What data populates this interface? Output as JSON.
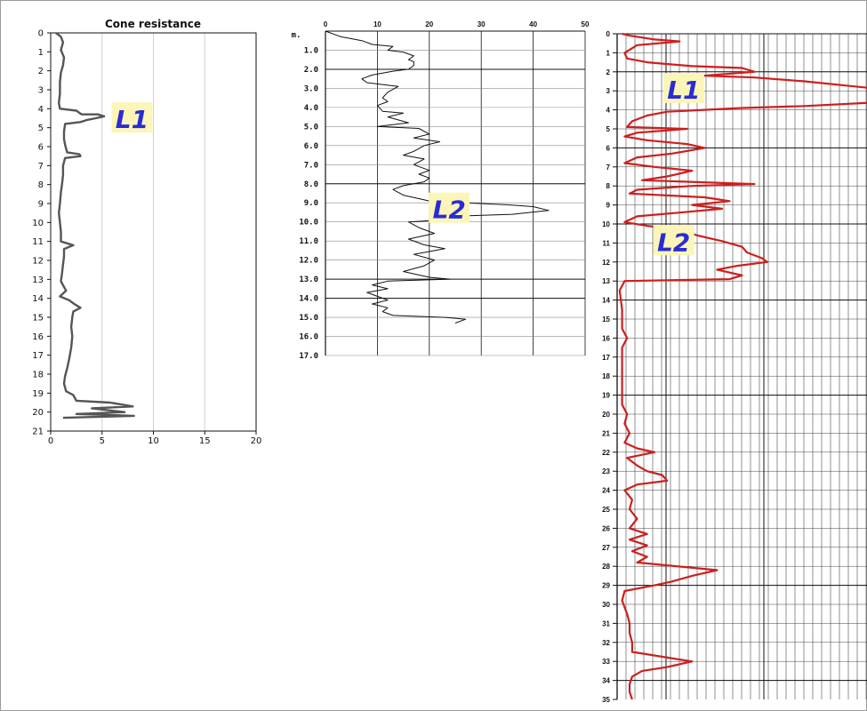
{
  "colors": {
    "panel1_line": "#555555",
    "panel2_line": "#111111",
    "panel3_line": "#cc1f1f",
    "label_text": "#2b2bd6",
    "label_bg": "#fbf6b8"
  },
  "chart_data": [
    {
      "type": "line",
      "title": "Cone resistance",
      "orientation": "depth profile (x = value, y = depth downwards)",
      "xlim": [
        0,
        20
      ],
      "ylim": [
        0,
        21
      ],
      "x_ticks": [
        "0",
        "5",
        "10",
        "15",
        "20"
      ],
      "y_ticks": [
        "0",
        "1",
        "2",
        "3",
        "4",
        "5",
        "6",
        "7",
        "8",
        "9",
        "10",
        "11",
        "12",
        "13",
        "14",
        "15",
        "16",
        "17",
        "18",
        "19",
        "20",
        "21"
      ],
      "annotations": [
        {
          "text": "L1",
          "x": 8,
          "y": 4.6
        }
      ],
      "series": [
        {
          "points": [
            [
              0.5,
              0
            ],
            [
              1,
              0.2
            ],
            [
              1.2,
              0.5
            ],
            [
              1,
              0.9
            ],
            [
              1.3,
              1.3
            ],
            [
              1.2,
              1.7
            ],
            [
              1,
              2.1
            ],
            [
              0.9,
              2.6
            ],
            [
              0.9,
              3.2
            ],
            [
              0.8,
              3.7
            ],
            [
              0.9,
              4
            ],
            [
              2.5,
              4.1
            ],
            [
              3,
              4.3
            ],
            [
              4.6,
              4.3
            ],
            [
              5.2,
              4.4
            ],
            [
              4.4,
              4.5
            ],
            [
              3.5,
              4.6
            ],
            [
              2.9,
              4.7
            ],
            [
              1.4,
              4.8
            ],
            [
              1.3,
              5.2
            ],
            [
              1.3,
              5.6
            ],
            [
              1.4,
              5.9
            ],
            [
              1.5,
              6.1
            ],
            [
              1.6,
              6.3
            ],
            [
              2.8,
              6.4
            ],
            [
              2.9,
              6.5
            ],
            [
              1.4,
              6.6
            ],
            [
              1.2,
              7
            ],
            [
              1.2,
              7.5
            ],
            [
              1.1,
              8
            ],
            [
              1,
              8.4
            ],
            [
              0.9,
              9
            ],
            [
              0.8,
              9.5
            ],
            [
              0.9,
              10
            ],
            [
              1,
              10.5
            ],
            [
              1,
              11
            ],
            [
              2.2,
              11.2
            ],
            [
              1.3,
              11.4
            ],
            [
              1.3,
              11.8
            ],
            [
              1.2,
              12.2
            ],
            [
              1.1,
              12.7
            ],
            [
              1,
              13.1
            ],
            [
              1.5,
              13.6
            ],
            [
              0.9,
              13.9
            ],
            [
              1.8,
              14.1
            ],
            [
              2.3,
              14.3
            ],
            [
              2.9,
              14.5
            ],
            [
              2.2,
              14.7
            ],
            [
              2.1,
              15
            ],
            [
              2,
              15.5
            ],
            [
              2.1,
              16
            ],
            [
              2,
              16.6
            ],
            [
              1.8,
              17.2
            ],
            [
              1.6,
              17.7
            ],
            [
              1.4,
              18.1
            ],
            [
              1.3,
              18.5
            ],
            [
              1.5,
              18.9
            ],
            [
              2.2,
              19.1
            ],
            [
              2.5,
              19.4
            ],
            [
              5.8,
              19.5
            ],
            [
              8,
              19.7
            ],
            [
              4,
              19.8
            ],
            [
              7.2,
              20
            ],
            [
              2.5,
              20.1
            ],
            [
              8.1,
              20.2
            ],
            [
              1.2,
              20.3
            ]
          ]
        }
      ]
    },
    {
      "type": "line",
      "orientation": "depth profile (x = value, y = depth downwards)",
      "xlim": [
        0,
        50
      ],
      "ylim": [
        0,
        17
      ],
      "x_ticks": [
        "0",
        "10",
        "20",
        "30",
        "40",
        "50"
      ],
      "y_ticks": [
        "0.0",
        "1.0",
        "2.0",
        "3.0",
        "4.0",
        "5.0",
        "6.0",
        "7.0",
        "8.0",
        "9.0",
        "10.0",
        "11.0",
        "12.0",
        "13.0",
        "14.0",
        "15.0",
        "16.0",
        "17.0"
      ],
      "y_unit_label": "m.",
      "annotations": [
        {
          "text": "L2",
          "x": 24,
          "y": 9.3
        }
      ],
      "series": [
        {
          "points": [
            [
              0,
              0
            ],
            [
              3,
              0.3
            ],
            [
              7,
              0.5
            ],
            [
              9,
              0.7
            ],
            [
              13,
              0.8
            ],
            [
              12,
              1
            ],
            [
              15,
              1.1
            ],
            [
              17,
              1.3
            ],
            [
              16,
              1.5
            ],
            [
              17,
              1.6
            ],
            [
              17,
              1.8
            ],
            [
              16,
              2
            ],
            [
              13,
              2.1
            ],
            [
              11,
              2.2
            ],
            [
              9,
              2.3
            ],
            [
              7,
              2.5
            ],
            [
              8,
              2.7
            ],
            [
              11,
              2.8
            ],
            [
              14,
              2.9
            ],
            [
              12,
              3.2
            ],
            [
              11,
              3.5
            ],
            [
              12,
              3.7
            ],
            [
              10,
              3.9
            ],
            [
              11,
              4.2
            ],
            [
              15,
              4.3
            ],
            [
              12,
              4.5
            ],
            [
              16,
              4.8
            ],
            [
              10,
              5
            ],
            [
              18,
              5.1
            ],
            [
              20,
              5.4
            ],
            [
              17,
              5.6
            ],
            [
              22,
              5.8
            ],
            [
              19,
              6
            ],
            [
              17,
              6.3
            ],
            [
              15,
              6.5
            ],
            [
              19,
              6.7
            ],
            [
              17,
              7
            ],
            [
              20,
              7.3
            ],
            [
              18,
              7.5
            ],
            [
              20,
              7.7
            ],
            [
              19,
              7.9
            ],
            [
              15,
              8.1
            ],
            [
              13,
              8.3
            ],
            [
              15,
              8.6
            ],
            [
              20,
              8.9
            ],
            [
              27,
              9
            ],
            [
              35,
              9.1
            ],
            [
              40,
              9.2
            ],
            [
              43,
              9.4
            ],
            [
              36,
              9.6
            ],
            [
              25,
              9.7
            ],
            [
              22,
              9.9
            ],
            [
              16,
              10
            ],
            [
              18,
              10.3
            ],
            [
              21,
              10.6
            ],
            [
              16,
              10.9
            ],
            [
              19,
              11.2
            ],
            [
              23,
              11.4
            ],
            [
              17,
              11.7
            ],
            [
              21,
              12
            ],
            [
              19,
              12.3
            ],
            [
              15,
              12.6
            ],
            [
              20,
              12.9
            ],
            [
              24,
              13
            ],
            [
              12,
              13.1
            ],
            [
              9,
              13.3
            ],
            [
              12,
              13.5
            ],
            [
              8,
              13.7
            ],
            [
              10,
              13.9
            ],
            [
              12,
              14.1
            ],
            [
              9,
              14.3
            ],
            [
              12,
              14.5
            ],
            [
              11,
              14.7
            ],
            [
              13,
              14.9
            ],
            [
              23,
              15
            ],
            [
              27,
              15.1
            ],
            [
              25,
              15.3
            ]
          ]
        }
      ]
    },
    {
      "type": "line",
      "orientation": "depth profile (x = value, y = depth downwards)",
      "ylim": [
        0,
        35
      ],
      "y_ticks": [
        "0",
        "1",
        "2",
        "3",
        "4",
        "5",
        "6",
        "7",
        "8",
        "9",
        "10",
        "11",
        "12",
        "13",
        "14",
        "15",
        "16",
        "17",
        "18",
        "19",
        "20",
        "21",
        "22",
        "23",
        "24",
        "25",
        "26",
        "27",
        "28",
        "29",
        "30",
        "31",
        "32",
        "33",
        "34",
        "35"
      ],
      "annotations": [
        {
          "text": "L1",
          "x": 0.27,
          "y": 2.9
        },
        {
          "text": "L2",
          "x": 0.23,
          "y": 10.9
        }
      ],
      "series": [
        {
          "points": [
            [
              0.02,
              0
            ],
            [
              0.05,
              0.1
            ],
            [
              0.15,
              0.3
            ],
            [
              0.25,
              0.4
            ],
            [
              0.08,
              0.6
            ],
            [
              0.03,
              1
            ],
            [
              0.04,
              1.3
            ],
            [
              0.12,
              1.5
            ],
            [
              0.3,
              1.7
            ],
            [
              0.5,
              1.8
            ],
            [
              0.55,
              2
            ],
            [
              0.35,
              2.2
            ],
            [
              0.55,
              2.3
            ],
            [
              0.75,
              2.5
            ],
            [
              0.9,
              2.7
            ],
            [
              1.05,
              2.9
            ],
            [
              1.12,
              3.1
            ],
            [
              1.1,
              3.3
            ],
            [
              1.05,
              3.6
            ],
            [
              0.75,
              3.8
            ],
            [
              0.5,
              3.9
            ],
            [
              0.2,
              4.1
            ],
            [
              0.12,
              4.3
            ],
            [
              0.06,
              4.6
            ],
            [
              0.04,
              4.9
            ],
            [
              0.28,
              5
            ],
            [
              0.08,
              5.2
            ],
            [
              0.03,
              5.4
            ],
            [
              0.12,
              5.6
            ],
            [
              0.28,
              5.8
            ],
            [
              0.35,
              6
            ],
            [
              0.22,
              6.3
            ],
            [
              0.08,
              6.5
            ],
            [
              0.03,
              6.8
            ],
            [
              0.15,
              7
            ],
            [
              0.3,
              7.2
            ],
            [
              0.2,
              7.5
            ],
            [
              0.1,
              7.7
            ],
            [
              0.55,
              7.9
            ],
            [
              0.3,
              8
            ],
            [
              0.08,
              8.2
            ],
            [
              0.05,
              8.4
            ],
            [
              0.35,
              8.6
            ],
            [
              0.45,
              8.8
            ],
            [
              0.3,
              9
            ],
            [
              0.42,
              9.2
            ],
            [
              0.25,
              9.4
            ],
            [
              0.08,
              9.6
            ],
            [
              0.03,
              9.9
            ],
            [
              0.12,
              10.1
            ],
            [
              0.25,
              10.3
            ],
            [
              0.32,
              10.6
            ],
            [
              0.42,
              10.9
            ],
            [
              0.5,
              11.2
            ],
            [
              0.52,
              11.5
            ],
            [
              0.58,
              11.8
            ],
            [
              0.6,
              12
            ],
            [
              0.48,
              12.2
            ],
            [
              0.4,
              12.4
            ],
            [
              0.5,
              12.7
            ],
            [
              0.45,
              12.9
            ],
            [
              0.03,
              13
            ],
            [
              0.01,
              13.5
            ],
            [
              0.02,
              14.5
            ],
            [
              0.02,
              15.5
            ],
            [
              0.04,
              16
            ],
            [
              0.02,
              16.5
            ],
            [
              0.02,
              17.5
            ],
            [
              0.02,
              18.5
            ],
            [
              0.02,
              19.5
            ],
            [
              0.04,
              20
            ],
            [
              0.03,
              20.5
            ],
            [
              0.05,
              21
            ],
            [
              0.03,
              21.5
            ],
            [
              0.08,
              21.8
            ],
            [
              0.15,
              22
            ],
            [
              0.04,
              22.3
            ],
            [
              0.08,
              22.7
            ],
            [
              0.12,
              23
            ],
            [
              0.18,
              23.2
            ],
            [
              0.2,
              23.5
            ],
            [
              0.08,
              23.7
            ],
            [
              0.03,
              24
            ],
            [
              0.06,
              24.5
            ],
            [
              0.05,
              25
            ],
            [
              0.08,
              25.5
            ],
            [
              0.05,
              26
            ],
            [
              0.12,
              26.3
            ],
            [
              0.05,
              26.6
            ],
            [
              0.12,
              26.9
            ],
            [
              0.06,
              27.2
            ],
            [
              0.12,
              27.5
            ],
            [
              0.08,
              27.8
            ],
            [
              0.4,
              28.2
            ],
            [
              0.3,
              28.5
            ],
            [
              0.22,
              28.8
            ],
            [
              0.15,
              29
            ],
            [
              0.03,
              29.3
            ],
            [
              0.02,
              29.8
            ],
            [
              0.04,
              30.5
            ],
            [
              0.05,
              31
            ],
            [
              0.05,
              31.5
            ],
            [
              0.06,
              32
            ],
            [
              0.06,
              32.5
            ],
            [
              0.25,
              32.9
            ],
            [
              0.3,
              33
            ],
            [
              0.2,
              33.3
            ],
            [
              0.1,
              33.5
            ],
            [
              0.06,
              33.8
            ],
            [
              0.05,
              34.2
            ],
            [
              0.05,
              34.6
            ],
            [
              0.06,
              35
            ]
          ]
        }
      ]
    }
  ]
}
